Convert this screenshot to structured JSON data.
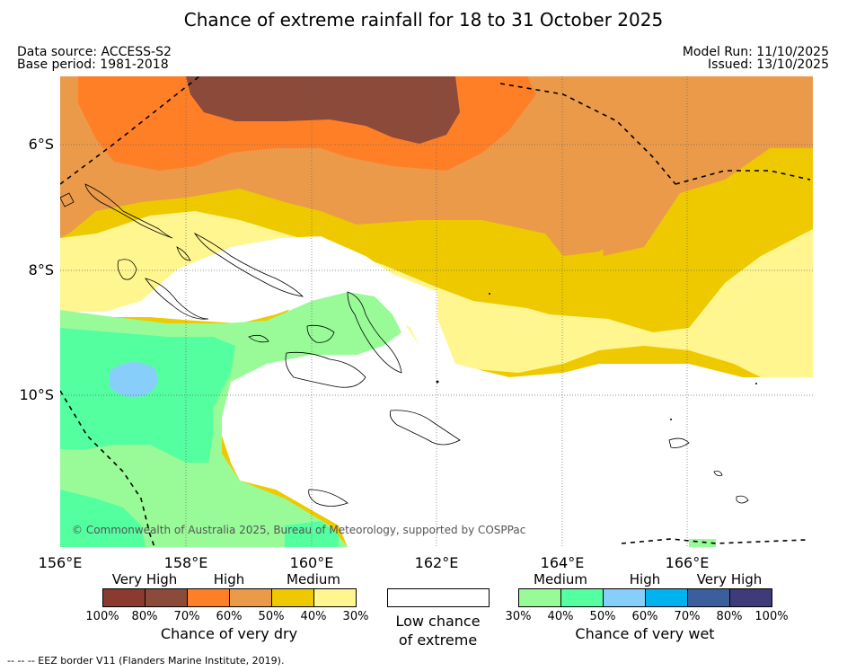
{
  "title": "Chance of extreme rainfall for 18 to 31 October 2025",
  "data_source": "Data source: ACCESS-S2",
  "base_period": "Base period: 1981-2018",
  "model_run": "Model Run: 11/10/2025",
  "issued": "Issued: 13/10/2025",
  "lon_labels": [
    "156°E",
    "158°E",
    "160°E",
    "162°E",
    "164°E",
    "166°E"
  ],
  "lat_labels": [
    "6°S",
    "8°S",
    "10°S"
  ],
  "copyright": "© Commonwealth of Australia 2025, Bureau of Meteorology, supported by COSPPac",
  "eez_note": "-- -- -- EEZ border V11 (Flanders Marine Institute, 2019).",
  "legend": {
    "dry": {
      "categories": [
        "Very High",
        "High",
        "Medium"
      ],
      "ticks": [
        "100%",
        "80%",
        "70%",
        "60%",
        "50%",
        "40%",
        "30%"
      ],
      "colors": [
        "#8b3a2f",
        "#8b4a3a",
        "#ff7f27",
        "#eb9a4a",
        "#eec900",
        "#fff68f"
      ],
      "title": "Chance of very dry"
    },
    "low": {
      "title_line1": "Low chance",
      "title_line2": "of extreme",
      "color": "#ffffff"
    },
    "wet": {
      "categories": [
        "Medium",
        "High",
        "Very High"
      ],
      "ticks": [
        "30%",
        "40%",
        "50%",
        "60%",
        "70%",
        "80%",
        "100%"
      ],
      "colors": [
        "#98fb98",
        "#54ffa0",
        "#87cefa",
        "#00b2ee",
        "#3a5f9c",
        "#3f3a7a"
      ],
      "title": "Chance of very wet"
    }
  },
  "map_colors": {
    "very_dry_high": "#8b4a3a",
    "dry_high": "#ff7f27",
    "dry_high_light": "#eb9a4a",
    "dry_medium": "#eec900",
    "dry_medium_light": "#fff68f",
    "low": "#ffffff",
    "wet_medium": "#98fb98",
    "wet_medium_dark": "#54ffa0",
    "wet_high": "#87cefa"
  }
}
